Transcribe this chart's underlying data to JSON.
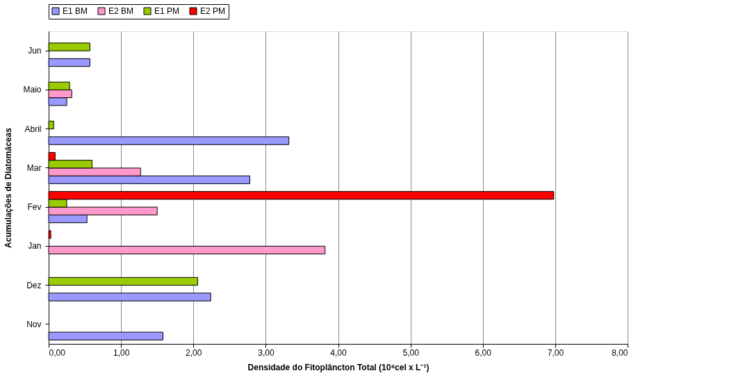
{
  "chart_data": {
    "type": "bar",
    "orientation": "horizontal",
    "categories": [
      "Jun",
      "Maio",
      "Abril",
      "Mar",
      "Fev",
      "Jan",
      "Dez",
      "Nov"
    ],
    "series": [
      {
        "name": "E1 BM",
        "color": "#9999ff",
        "values": [
          0.57,
          0.25,
          3.32,
          2.78,
          0.53,
          null,
          2.24,
          1.58
        ]
      },
      {
        "name": "E2 BM",
        "color": "#ff99cc",
        "values": [
          null,
          0.32,
          null,
          1.27,
          1.5,
          3.82,
          null,
          null
        ]
      },
      {
        "name": "E1 PM",
        "color": "#99cc00",
        "values": [
          0.57,
          0.29,
          0.07,
          0.6,
          0.25,
          null,
          2.06,
          null
        ]
      },
      {
        "name": "E2 PM",
        "color": "#ff0000",
        "values": [
          null,
          null,
          null,
          0.09,
          6.98,
          0.03,
          null,
          null
        ]
      }
    ],
    "xlim": [
      0,
      8
    ],
    "xticks": [
      {
        "value": 0,
        "label": "0,00"
      },
      {
        "value": 1,
        "label": "1,00"
      },
      {
        "value": 2,
        "label": "2,00"
      },
      {
        "value": 3,
        "label": "3,00"
      },
      {
        "value": 4,
        "label": "4,00"
      },
      {
        "value": 5,
        "label": "5,00"
      },
      {
        "value": 6,
        "label": "6,00"
      },
      {
        "value": 7,
        "label": "7,00"
      },
      {
        "value": 8,
        "label": "8,00"
      }
    ],
    "xlabel": "Densidade do Fitoplâncton Total (10⁸cel x L⁻¹)",
    "ylabel": "Acumulações de Diatomáceas",
    "grid": "x",
    "legend": "top"
  }
}
